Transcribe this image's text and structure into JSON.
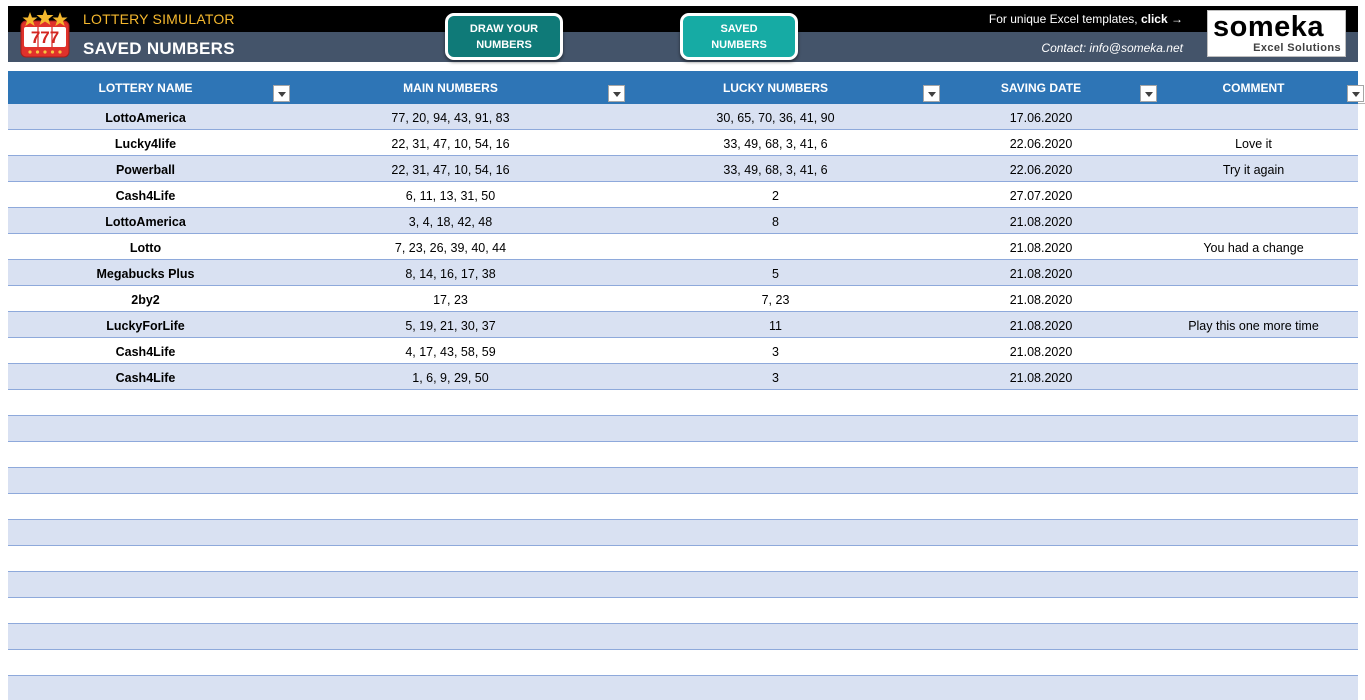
{
  "header": {
    "app_title": "LOTTERY SIMULATOR",
    "page_title": "SAVED NUMBERS",
    "buttons": {
      "draw_line1": "DRAW YOUR",
      "draw_line2": "NUMBERS",
      "saved_line1": "SAVED",
      "saved_line2": "NUMBERS"
    },
    "promo_text": "For unique Excel templates, ",
    "promo_click": "click →",
    "contact": "Contact: info@someka.net",
    "brand_name": "someka",
    "brand_sub": "Excel Solutions",
    "logo_text": "777"
  },
  "colors": {
    "header_black": "#000000",
    "header_slate": "#44546a",
    "accent_gold": "#f5b82e",
    "table_header": "#2e75b6",
    "row_band": "#d9e1f2",
    "btn_dark_teal": "#0f7a78",
    "btn_light_teal": "#16aba4"
  },
  "table": {
    "columns": [
      "LOTTERY NAME",
      "MAIN NUMBERS",
      "LUCKY NUMBERS",
      "SAVING DATE",
      "COMMENT"
    ],
    "rows": [
      {
        "name": "LottoAmerica",
        "main": "77, 20, 94, 43, 91, 83",
        "lucky": "30, 65, 70, 36, 41, 90",
        "date": "17.06.2020",
        "comment": ""
      },
      {
        "name": "Lucky4life",
        "main": "22, 31, 47, 10, 54, 16",
        "lucky": "33, 49, 68, 3, 41, 6",
        "date": "22.06.2020",
        "comment": "Love it"
      },
      {
        "name": "Powerball",
        "main": "22, 31, 47, 10, 54, 16",
        "lucky": "33, 49, 68, 3, 41, 6",
        "date": "22.06.2020",
        "comment": "Try it again"
      },
      {
        "name": "Cash4Life",
        "main": "6, 11, 13, 31, 50",
        "lucky": "2",
        "date": "27.07.2020",
        "comment": ""
      },
      {
        "name": "LottoAmerica",
        "main": "3, 4, 18, 42, 48",
        "lucky": "8",
        "date": "21.08.2020",
        "comment": ""
      },
      {
        "name": "Lotto",
        "main": "7, 23, 26, 39, 40, 44",
        "lucky": "",
        "date": "21.08.2020",
        "comment": "You had a change"
      },
      {
        "name": "Megabucks Plus",
        "main": "8, 14, 16, 17, 38",
        "lucky": "5",
        "date": "21.08.2020",
        "comment": ""
      },
      {
        "name": "2by2",
        "main": "17, 23",
        "lucky": "7, 23",
        "date": "21.08.2020",
        "comment": ""
      },
      {
        "name": "LuckyForLife",
        "main": "5, 19, 21, 30, 37",
        "lucky": "11",
        "date": "21.08.2020",
        "comment": "Play this one more time"
      },
      {
        "name": "Cash4Life",
        "main": "4, 17, 43, 58, 59",
        "lucky": "3",
        "date": "21.08.2020",
        "comment": ""
      },
      {
        "name": "Cash4Life",
        "main": "1, 6, 9, 29, 50",
        "lucky": "3",
        "date": "21.08.2020",
        "comment": ""
      }
    ],
    "empty_row_count": 12
  }
}
